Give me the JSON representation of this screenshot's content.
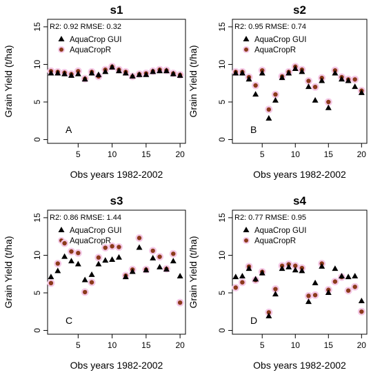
{
  "colors": {
    "gui": "#000000",
    "r": "#8B3A1A",
    "highlight": "#F4C8E6"
  },
  "chart_data": [
    {
      "type": "scatter",
      "title": "s1",
      "letter": "A",
      "ylabel": "Grain Yield (t/ha)",
      "xlabel": "Obs years 1982-2002",
      "stats": "R2:  0.92 RMSE:  0.32",
      "xlim": [
        0.5,
        20.8
      ],
      "ylim": [
        -0.5,
        16
      ],
      "xticks": [
        "5",
        "10",
        "15",
        "20"
      ],
      "yticks": [
        "0",
        "5",
        "10",
        "15"
      ],
      "x": [
        1,
        2,
        3,
        4,
        5,
        6,
        7,
        8,
        9,
        10,
        11,
        12,
        13,
        14,
        15,
        16,
        17,
        18,
        19,
        20
      ],
      "series": [
        {
          "name": "AquaCrop GUI",
          "marker": "triangle",
          "values": [
            8.8,
            8.8,
            8.7,
            8.5,
            8.7,
            8.0,
            8.8,
            8.6,
            9.0,
            9.6,
            9.1,
            8.8,
            8.4,
            8.6,
            8.6,
            9.0,
            9.1,
            9.1,
            8.7,
            8.5
          ]
        },
        {
          "name": "AquaCropR",
          "marker": "circle",
          "values": [
            9.1,
            9.0,
            8.9,
            8.7,
            9.1,
            8.1,
            9.0,
            8.4,
            9.3,
            9.7,
            9.3,
            9.0,
            8.4,
            8.7,
            8.8,
            9.1,
            9.3,
            9.2,
            8.8,
            8.6
          ]
        }
      ]
    },
    {
      "type": "scatter",
      "title": "s2",
      "letter": "B",
      "ylabel": "Grain Yield (t/ha)",
      "xlabel": "Obs years 1982-2002",
      "stats": "R2:  0.95 RMSE:  0.74",
      "xlim": [
        0.5,
        20.8
      ],
      "ylim": [
        -0.5,
        16
      ],
      "xticks": [
        "5",
        "10",
        "15",
        "20"
      ],
      "yticks": [
        "0",
        "5",
        "10",
        "15"
      ],
      "x": [
        1,
        2,
        3,
        4,
        5,
        6,
        7,
        8,
        9,
        10,
        11,
        12,
        13,
        14,
        15,
        16,
        17,
        18,
        19,
        20
      ],
      "series": [
        {
          "name": "AquaCrop GUI",
          "marker": "triangle",
          "values": [
            8.8,
            8.8,
            8.0,
            6.0,
            8.8,
            2.8,
            5.2,
            8.2,
            8.8,
            9.4,
            9.0,
            7.0,
            5.2,
            7.8,
            4.2,
            8.8,
            8.0,
            7.8,
            7.0,
            6.2
          ]
        },
        {
          "name": "AquaCropR",
          "marker": "circle",
          "values": [
            9.0,
            9.0,
            8.3,
            7.2,
            9.2,
            4.0,
            6.0,
            8.4,
            9.0,
            9.7,
            9.3,
            7.8,
            7.0,
            8.2,
            5.0,
            9.2,
            8.3,
            8.0,
            8.0,
            6.5
          ]
        }
      ]
    },
    {
      "type": "scatter",
      "title": "s3",
      "letter": "C",
      "ylabel": "Grain Yield (t/ha)",
      "xlabel": "Obs years 1982-2002",
      "stats": "R2:  0.86 RMSE:  1.44",
      "xlim": [
        0.5,
        20.8
      ],
      "ylim": [
        -0.5,
        16
      ],
      "xticks": [
        "5",
        "10",
        "15",
        "20"
      ],
      "yticks": [
        "0",
        "5",
        "10",
        "15"
      ],
      "x": [
        1,
        2,
        3,
        4,
        5,
        6,
        7,
        8,
        9,
        10,
        11,
        12,
        13,
        14,
        15,
        16,
        17,
        18,
        19,
        20
      ],
      "series": [
        {
          "name": "AquaCrop GUI",
          "marker": "triangle",
          "values": [
            7.1,
            7.9,
            9.8,
            9.2,
            8.8,
            6.7,
            7.4,
            8.8,
            9.3,
            9.4,
            9.7,
            7.1,
            7.8,
            11.0,
            8.0,
            9.6,
            8.4,
            8.1,
            9.2,
            7.2
          ]
        },
        {
          "name": "AquaCropR",
          "marker": "circle",
          "values": [
            6.3,
            8.9,
            11.6,
            10.5,
            10.3,
            5.1,
            6.4,
            9.7,
            11.0,
            11.2,
            11.1,
            7.3,
            8.1,
            12.3,
            8.1,
            10.6,
            9.8,
            8.2,
            10.2,
            3.7
          ]
        }
      ]
    },
    {
      "type": "scatter",
      "title": "s4",
      "letter": "D",
      "ylabel": "Grain Yield (t/ha)",
      "xlabel": "Obs years 1982-2002",
      "stats": "R2:  0.77 RMSE:  0.95",
      "xlim": [
        0.5,
        20.8
      ],
      "ylim": [
        -0.5,
        16
      ],
      "xticks": [
        "5",
        "10",
        "15",
        "20"
      ],
      "yticks": [
        "0",
        "5",
        "10",
        "15"
      ],
      "x": [
        1,
        2,
        3,
        4,
        5,
        6,
        7,
        8,
        9,
        10,
        11,
        12,
        13,
        14,
        15,
        16,
        17,
        18,
        19,
        20
      ],
      "series": [
        {
          "name": "AquaCrop GUI",
          "marker": "triangle",
          "values": [
            7.1,
            7.2,
            8.2,
            6.8,
            7.6,
            1.9,
            4.8,
            8.2,
            8.4,
            8.0,
            7.9,
            3.8,
            6.3,
            8.5,
            5.0,
            8.2,
            7.2,
            7.1,
            7.2,
            3.9
          ]
        },
        {
          "name": "AquaCropR",
          "marker": "circle",
          "values": [
            5.7,
            6.4,
            8.5,
            6.7,
            7.8,
            2.4,
            5.5,
            8.6,
            8.8,
            8.6,
            8.3,
            4.6,
            4.7,
            8.9,
            5.4,
            6.5,
            7.1,
            5.3,
            5.8,
            2.5
          ]
        }
      ]
    }
  ]
}
